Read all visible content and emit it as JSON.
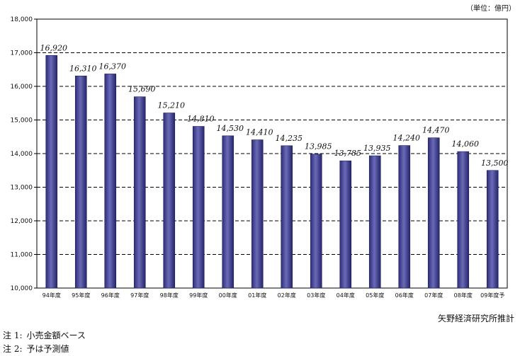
{
  "unit_label": "（単位：億円）",
  "source": "矢野経済研究所推計",
  "notes": [
    {
      "label": "注 1:",
      "text": "小売金額ベース"
    },
    {
      "label": "注 2:",
      "text": "予は予測値"
    }
  ],
  "chart_data": {
    "type": "bar",
    "categories": [
      "94年度",
      "95年度",
      "96年度",
      "97年度",
      "98年度",
      "99年度",
      "00年度",
      "01年度",
      "02年度",
      "03年度",
      "04年度",
      "05年度",
      "06年度",
      "07年度",
      "08年度",
      "09年度予"
    ],
    "values": [
      16920,
      16310,
      16370,
      15690,
      15210,
      14810,
      14530,
      14410,
      14235,
      13985,
      13785,
      13935,
      14240,
      14470,
      14060,
      13500
    ],
    "value_labels": [
      "16,920",
      "16,310",
      "16,370",
      "15,690",
      "15,210",
      "14,810",
      "14,530",
      "14,410",
      "14,235",
      "13,985",
      "13,785",
      "13,935",
      "14,240",
      "14,470",
      "14,060",
      "13,500"
    ],
    "yticks": [
      10000,
      11000,
      12000,
      13000,
      14000,
      15000,
      16000,
      17000,
      18000
    ],
    "ytick_labels": [
      "10,000",
      "11,000",
      "12,000",
      "13,000",
      "14,000",
      "15,000",
      "16,000",
      "17,000",
      "18,000"
    ],
    "ylim": [
      10000,
      18000
    ],
    "grid": "dashed horizontal",
    "bar_color": "#3a3a8c"
  }
}
